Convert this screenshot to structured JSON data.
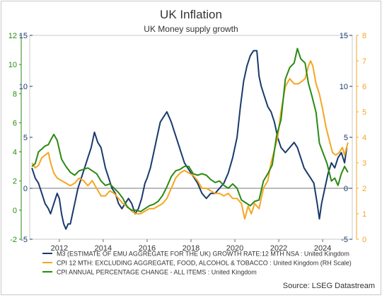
{
  "chart_data": {
    "type": "line",
    "title": "UK Inflation",
    "subtitle": "UK Money supply growth",
    "x_ticks": [
      "2012",
      "2014",
      "2016",
      "2018",
      "2020",
      "2022",
      "2024"
    ],
    "xlim": [
      2010.65,
      2025.35
    ],
    "axes": {
      "m3": {
        "ylim": [
          -5,
          15
        ],
        "ticks": [
          "-5",
          "0",
          "5",
          "10",
          "15"
        ],
        "color": "#1a3a6b"
      },
      "cpi_all": {
        "ylim": [
          -2,
          12
        ],
        "ticks": [
          "-2",
          "0",
          "2",
          "4",
          "6",
          "8",
          "10",
          "12"
        ],
        "color": "#2a8a12"
      },
      "cpi_core": {
        "ylim": [
          0,
          8
        ],
        "ticks": [
          "0",
          "1",
          "2",
          "3",
          "4",
          "5",
          "6",
          "7",
          "8"
        ],
        "color": "#f5a623"
      }
    },
    "grid": false,
    "legend_position": "bottom",
    "source": "Source: LSEG Datastream",
    "series": [
      {
        "name": "M3 (ESTIMATE OF EMU AGGREGATE FOR THE UK) GROWTH RATE:12 MTH NSA : United Kingdom",
        "axis": "m3",
        "color": "#1a3a6b",
        "points": [
          [
            2010.75,
            2.0
          ],
          [
            2010.9,
            1.0
          ],
          [
            2011.05,
            0.5
          ],
          [
            2011.2,
            -0.5
          ],
          [
            2011.35,
            -1.5
          ],
          [
            2011.5,
            -2.0
          ],
          [
            2011.6,
            -2.5
          ],
          [
            2011.75,
            -1.5
          ],
          [
            2011.9,
            -0.5
          ],
          [
            2012.0,
            -1.0
          ],
          [
            2012.1,
            -2.5
          ],
          [
            2012.2,
            -3.5
          ],
          [
            2012.3,
            -4.0
          ],
          [
            2012.4,
            -3.5
          ],
          [
            2012.5,
            -3.5
          ],
          [
            2012.6,
            -2.5
          ],
          [
            2012.7,
            -1.5
          ],
          [
            2012.85,
            0.0
          ],
          [
            2013.0,
            1.0
          ],
          [
            2013.15,
            2.0
          ],
          [
            2013.3,
            3.0
          ],
          [
            2013.45,
            4.0
          ],
          [
            2013.6,
            5.5
          ],
          [
            2013.75,
            4.5
          ],
          [
            2013.9,
            4.0
          ],
          [
            2014.0,
            3.0
          ],
          [
            2014.1,
            2.0
          ],
          [
            2014.25,
            1.0
          ],
          [
            2014.4,
            0.0
          ],
          [
            2014.55,
            -0.5
          ],
          [
            2014.7,
            -1.5
          ],
          [
            2014.85,
            -2.0
          ],
          [
            2015.0,
            -1.5
          ],
          [
            2015.15,
            -1.0
          ],
          [
            2015.3,
            -1.5
          ],
          [
            2015.45,
            -2.5
          ],
          [
            2015.6,
            -2.0
          ],
          [
            2015.75,
            -1.0
          ],
          [
            2015.9,
            0.5
          ],
          [
            2016.0,
            1.0
          ],
          [
            2016.15,
            2.0
          ],
          [
            2016.3,
            3.5
          ],
          [
            2016.45,
            5.0
          ],
          [
            2016.6,
            6.5
          ],
          [
            2016.75,
            7.0
          ],
          [
            2016.9,
            7.5
          ],
          [
            2017.0,
            7.0
          ],
          [
            2017.1,
            6.5
          ],
          [
            2017.25,
            5.5
          ],
          [
            2017.4,
            4.5
          ],
          [
            2017.55,
            3.5
          ],
          [
            2017.7,
            2.5
          ],
          [
            2017.85,
            2.0
          ],
          [
            2018.0,
            1.5
          ],
          [
            2018.15,
            1.0
          ],
          [
            2018.3,
            0.5
          ],
          [
            2018.5,
            -0.5
          ],
          [
            2018.7,
            -1.0
          ],
          [
            2018.9,
            -0.5
          ],
          [
            2019.1,
            -0.5
          ],
          [
            2019.3,
            0.0
          ],
          [
            2019.5,
            0.5
          ],
          [
            2019.7,
            1.5
          ],
          [
            2019.9,
            3.0
          ],
          [
            2020.1,
            5.0
          ],
          [
            2020.25,
            8.0
          ],
          [
            2020.4,
            10.5
          ],
          [
            2020.55,
            12.0
          ],
          [
            2020.7,
            13.0
          ],
          [
            2020.85,
            13.5
          ],
          [
            2021.0,
            13.5
          ],
          [
            2021.1,
            11.0
          ],
          [
            2021.2,
            10.0
          ],
          [
            2021.35,
            9.0
          ],
          [
            2021.5,
            8.0
          ],
          [
            2021.65,
            7.5
          ],
          [
            2021.8,
            6.5
          ],
          [
            2021.95,
            5.0
          ],
          [
            2022.1,
            4.0
          ],
          [
            2022.3,
            3.5
          ],
          [
            2022.5,
            4.0
          ],
          [
            2022.7,
            4.5
          ],
          [
            2022.85,
            4.0
          ],
          [
            2023.0,
            3.0
          ],
          [
            2023.15,
            2.0
          ],
          [
            2023.3,
            1.5
          ],
          [
            2023.45,
            1.0
          ],
          [
            2023.6,
            0.5
          ],
          [
            2023.75,
            -1.5
          ],
          [
            2023.85,
            -3.0
          ],
          [
            2023.95,
            -1.5
          ],
          [
            2024.1,
            0.0
          ],
          [
            2024.25,
            1.5
          ],
          [
            2024.4,
            2.5
          ],
          [
            2024.55,
            2.0
          ],
          [
            2024.7,
            3.0
          ],
          [
            2024.85,
            3.5
          ],
          [
            2025.0,
            2.5
          ],
          [
            2025.1,
            4.0
          ]
        ]
      },
      {
        "name": "CPI 12 MTH: EXCLUDING AGGREGATE, FOOD, ALCOHOL & TOBACCO : United Kingdom (RH Scale)",
        "axis": "cpi_core",
        "color": "#f5a623",
        "points": [
          [
            2010.75,
            3.0
          ],
          [
            2010.9,
            2.8
          ],
          [
            2011.05,
            2.9
          ],
          [
            2011.2,
            3.2
          ],
          [
            2011.35,
            3.3
          ],
          [
            2011.5,
            3.4
          ],
          [
            2011.6,
            3.0
          ],
          [
            2011.75,
            2.6
          ],
          [
            2011.9,
            2.4
          ],
          [
            2012.1,
            2.3
          ],
          [
            2012.3,
            2.2
          ],
          [
            2012.5,
            2.1
          ],
          [
            2012.7,
            2.2
          ],
          [
            2012.9,
            2.4
          ],
          [
            2013.1,
            2.3
          ],
          [
            2013.3,
            2.1
          ],
          [
            2013.5,
            2.3
          ],
          [
            2013.7,
            2.0
          ],
          [
            2013.9,
            1.7
          ],
          [
            2014.1,
            1.7
          ],
          [
            2014.3,
            1.9
          ],
          [
            2014.5,
            1.8
          ],
          [
            2014.7,
            1.6
          ],
          [
            2014.9,
            1.4
          ],
          [
            2015.1,
            1.3
          ],
          [
            2015.3,
            1.1
          ],
          [
            2015.5,
            1.0
          ],
          [
            2015.7,
            1.0
          ],
          [
            2015.9,
            1.1
          ],
          [
            2016.1,
            1.2
          ],
          [
            2016.3,
            1.2
          ],
          [
            2016.5,
            1.3
          ],
          [
            2016.7,
            1.4
          ],
          [
            2016.9,
            1.6
          ],
          [
            2017.1,
            2.0
          ],
          [
            2017.3,
            2.4
          ],
          [
            2017.5,
            2.6
          ],
          [
            2017.7,
            2.7
          ],
          [
            2017.9,
            2.6
          ],
          [
            2018.1,
            2.5
          ],
          [
            2018.3,
            2.3
          ],
          [
            2018.5,
            2.0
          ],
          [
            2018.7,
            2.0
          ],
          [
            2018.9,
            1.9
          ],
          [
            2019.1,
            1.8
          ],
          [
            2019.3,
            1.8
          ],
          [
            2019.5,
            1.7
          ],
          [
            2019.7,
            1.8
          ],
          [
            2019.9,
            1.6
          ],
          [
            2020.1,
            1.6
          ],
          [
            2020.3,
            1.4
          ],
          [
            2020.45,
            0.8
          ],
          [
            2020.6,
            1.3
          ],
          [
            2020.75,
            1.0
          ],
          [
            2020.9,
            1.4
          ],
          [
            2021.1,
            1.2
          ],
          [
            2021.3,
            2.0
          ],
          [
            2021.5,
            2.3
          ],
          [
            2021.65,
            3.0
          ],
          [
            2021.8,
            3.5
          ],
          [
            2021.95,
            4.0
          ],
          [
            2022.1,
            5.0
          ],
          [
            2022.3,
            6.0
          ],
          [
            2022.5,
            6.3
          ],
          [
            2022.7,
            6.1
          ],
          [
            2022.9,
            6.1
          ],
          [
            2023.05,
            6.2
          ],
          [
            2023.2,
            6.3
          ],
          [
            2023.35,
            6.8
          ],
          [
            2023.45,
            7.0
          ],
          [
            2023.55,
            6.8
          ],
          [
            2023.7,
            6.1
          ],
          [
            2023.85,
            5.7
          ],
          [
            2024.0,
            5.1
          ],
          [
            2024.15,
            4.4
          ],
          [
            2024.3,
            3.9
          ],
          [
            2024.45,
            3.4
          ],
          [
            2024.6,
            3.3
          ],
          [
            2024.75,
            3.4
          ],
          [
            2024.9,
            3.6
          ],
          [
            2025.0,
            3.3
          ],
          [
            2025.15,
            3.8
          ]
        ]
      },
      {
        "name": "CPI ANNUAL PERCENTAGE CHANGE - ALL ITEMS : United Kingdom",
        "axis": "cpi_all",
        "color": "#2a8a12",
        "points": [
          [
            2010.75,
            3.0
          ],
          [
            2010.9,
            3.2
          ],
          [
            2011.05,
            4.0
          ],
          [
            2011.2,
            4.2
          ],
          [
            2011.35,
            4.4
          ],
          [
            2011.5,
            4.5
          ],
          [
            2011.6,
            4.8
          ],
          [
            2011.75,
            5.2
          ],
          [
            2011.9,
            4.8
          ],
          [
            2012.1,
            3.5
          ],
          [
            2012.3,
            3.0
          ],
          [
            2012.5,
            2.6
          ],
          [
            2012.7,
            2.4
          ],
          [
            2012.9,
            2.7
          ],
          [
            2013.1,
            2.8
          ],
          [
            2013.3,
            2.9
          ],
          [
            2013.5,
            2.7
          ],
          [
            2013.7,
            2.5
          ],
          [
            2013.9,
            2.0
          ],
          [
            2014.1,
            1.7
          ],
          [
            2014.3,
            1.8
          ],
          [
            2014.5,
            1.5
          ],
          [
            2014.7,
            1.2
          ],
          [
            2014.9,
            0.8
          ],
          [
            2015.1,
            0.2
          ],
          [
            2015.3,
            0.0
          ],
          [
            2015.5,
            0.0
          ],
          [
            2015.7,
            -0.1
          ],
          [
            2015.9,
            0.1
          ],
          [
            2016.1,
            0.3
          ],
          [
            2016.3,
            0.4
          ],
          [
            2016.5,
            0.6
          ],
          [
            2016.7,
            1.0
          ],
          [
            2016.9,
            1.6
          ],
          [
            2017.1,
            2.3
          ],
          [
            2017.3,
            2.7
          ],
          [
            2017.5,
            2.8
          ],
          [
            2017.7,
            3.0
          ],
          [
            2017.9,
            3.0
          ],
          [
            2018.1,
            2.5
          ],
          [
            2018.3,
            2.4
          ],
          [
            2018.5,
            2.5
          ],
          [
            2018.7,
            2.4
          ],
          [
            2018.9,
            2.1
          ],
          [
            2019.1,
            1.9
          ],
          [
            2019.3,
            2.0
          ],
          [
            2019.5,
            1.7
          ],
          [
            2019.7,
            1.5
          ],
          [
            2019.9,
            1.8
          ],
          [
            2020.1,
            1.5
          ],
          [
            2020.3,
            0.7
          ],
          [
            2020.5,
            0.5
          ],
          [
            2020.7,
            0.3
          ],
          [
            2020.9,
            0.6
          ],
          [
            2021.1,
            0.7
          ],
          [
            2021.3,
            2.0
          ],
          [
            2021.5,
            2.5
          ],
          [
            2021.7,
            3.1
          ],
          [
            2021.9,
            5.1
          ],
          [
            2022.1,
            6.2
          ],
          [
            2022.3,
            9.0
          ],
          [
            2022.5,
            9.8
          ],
          [
            2022.7,
            10.1
          ],
          [
            2022.85,
            11.1
          ],
          [
            2023.0,
            10.4
          ],
          [
            2023.2,
            10.1
          ],
          [
            2023.35,
            8.7
          ],
          [
            2023.5,
            7.9
          ],
          [
            2023.7,
            6.7
          ],
          [
            2023.85,
            4.6
          ],
          [
            2024.0,
            4.0
          ],
          [
            2024.2,
            3.2
          ],
          [
            2024.4,
            2.0
          ],
          [
            2024.55,
            2.2
          ],
          [
            2024.7,
            1.7
          ],
          [
            2024.85,
            2.5
          ],
          [
            2025.0,
            3.0
          ],
          [
            2025.15,
            2.6
          ]
        ]
      }
    ]
  }
}
